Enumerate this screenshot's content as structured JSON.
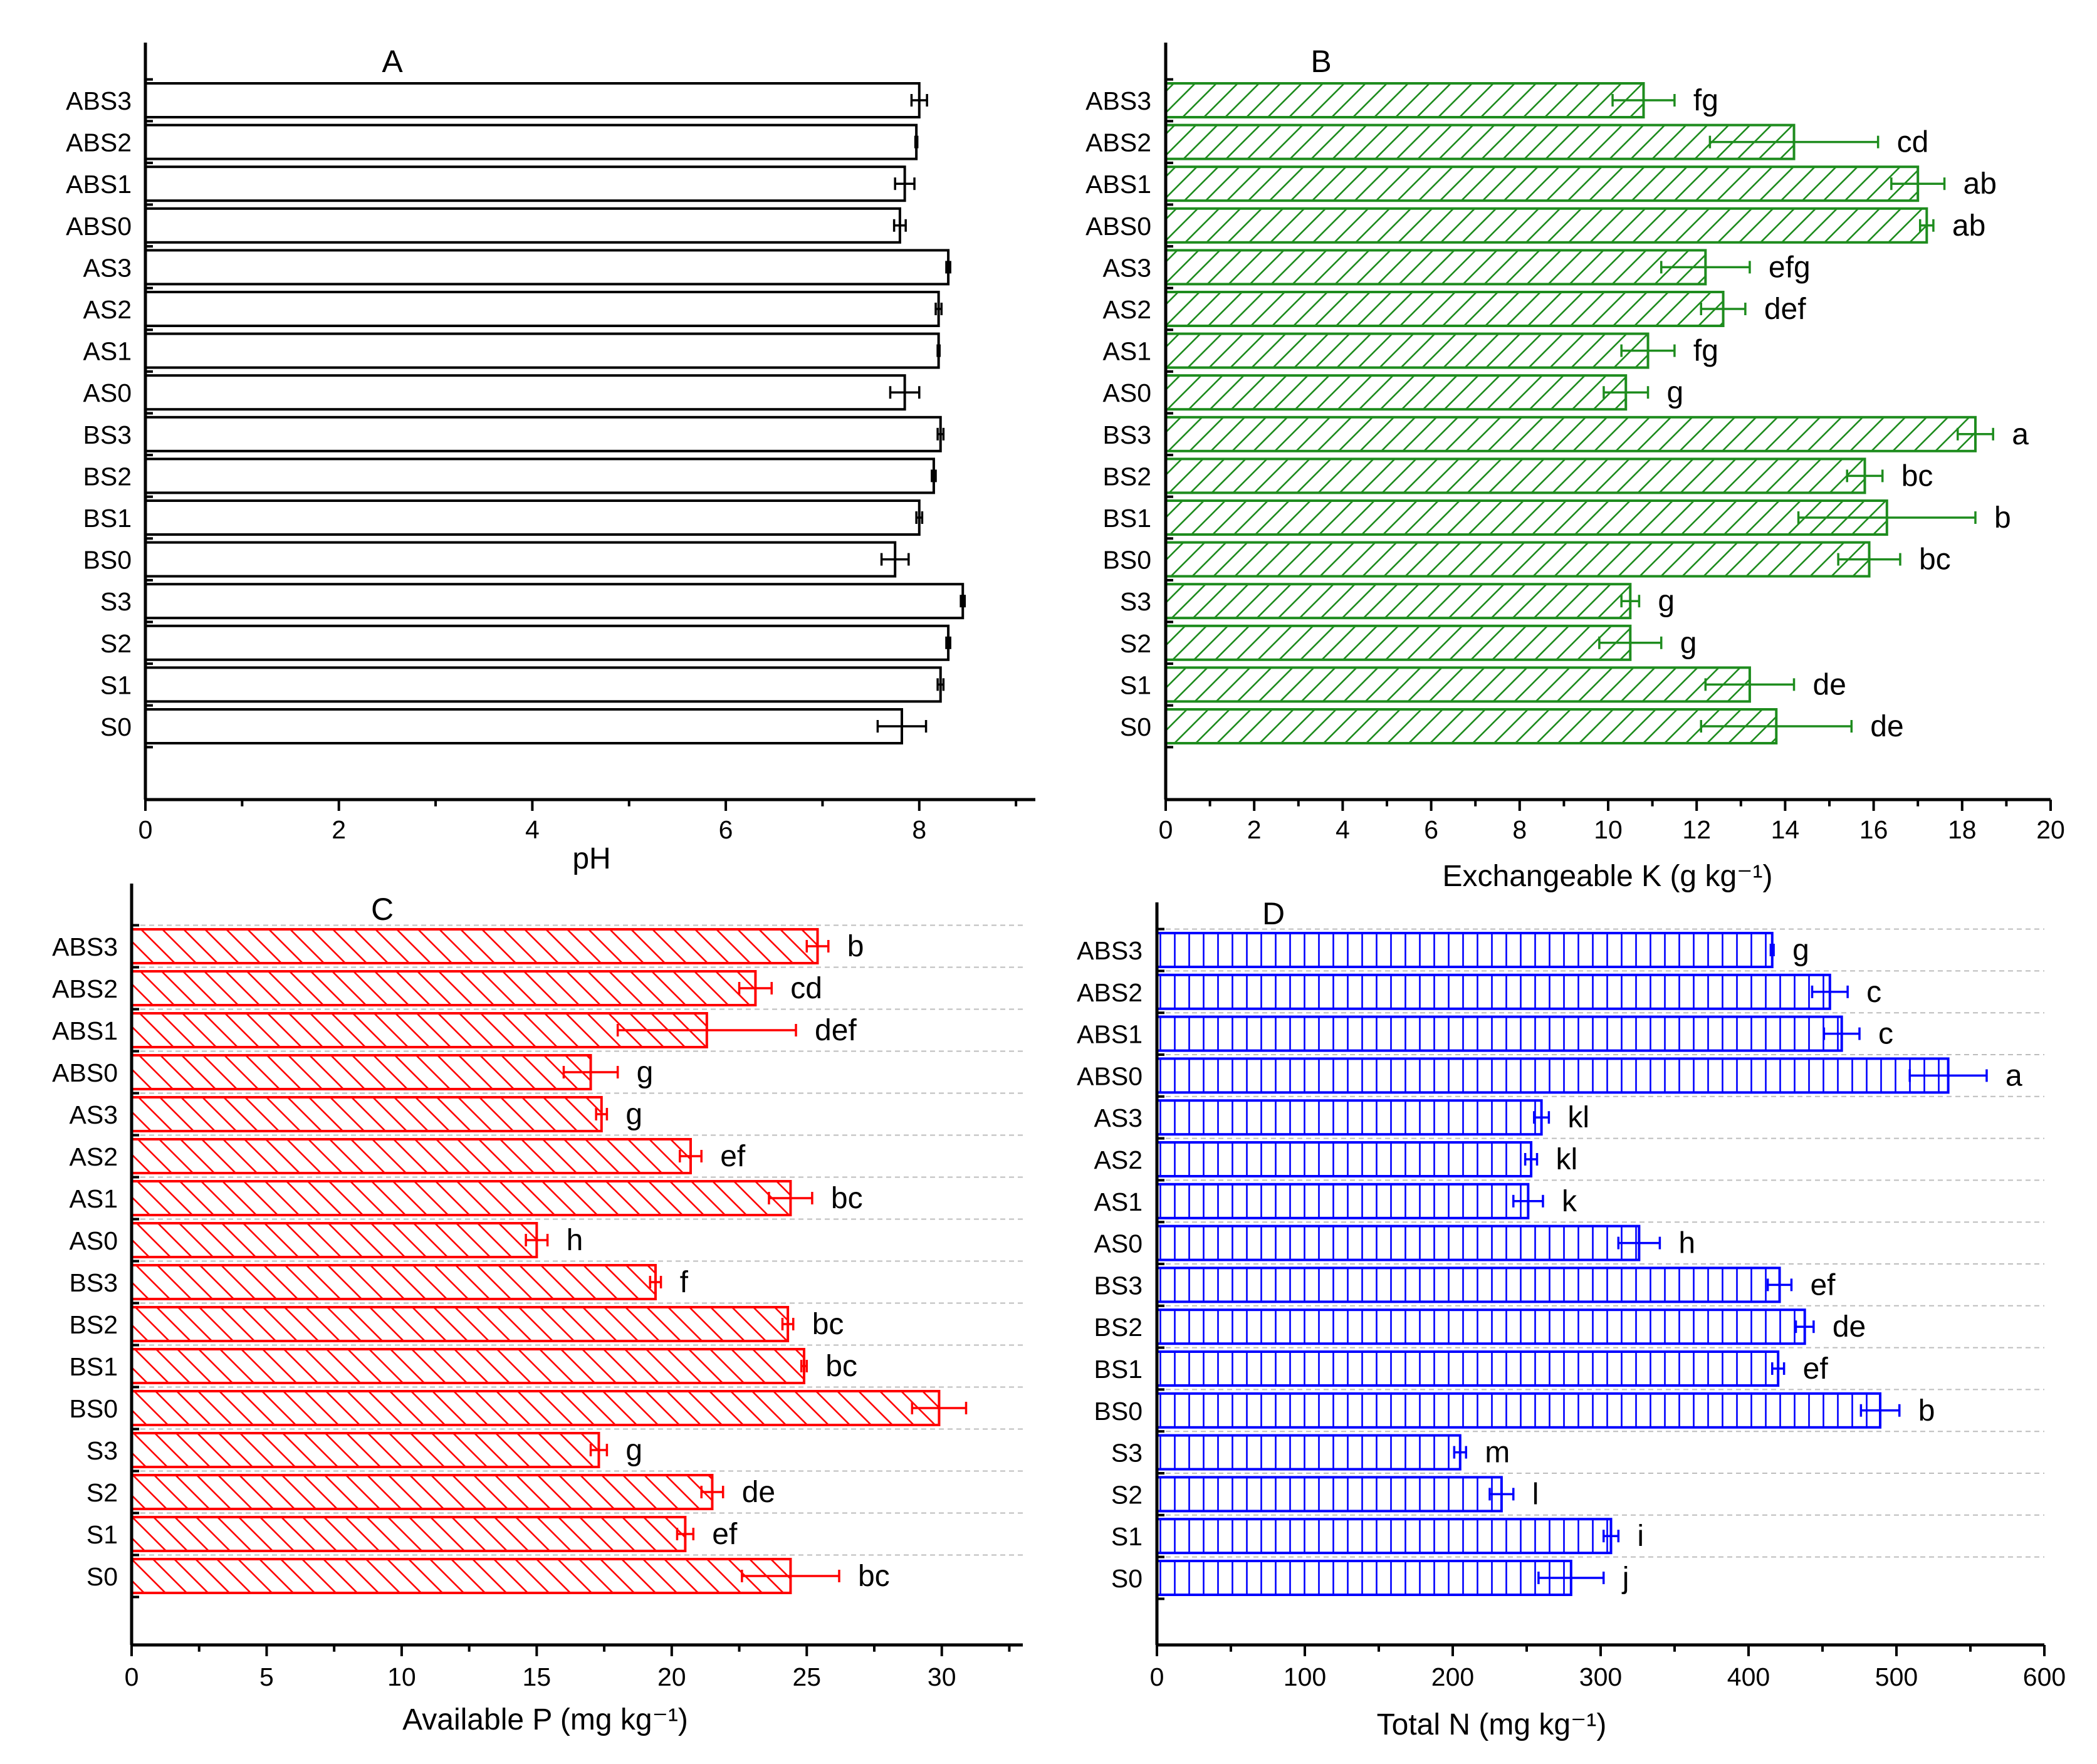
{
  "chart_data": [
    {
      "panel": "A",
      "type": "bar",
      "orientation": "horizontal",
      "categories": [
        "ABS3",
        "ABS2",
        "ABS1",
        "ABS0",
        "AS3",
        "AS2",
        "AS1",
        "AS0",
        "BS3",
        "BS2",
        "BS1",
        "BS0",
        "S3",
        "S2",
        "S1",
        "S0"
      ],
      "values": [
        8.0,
        7.97,
        7.85,
        7.8,
        8.3,
        8.2,
        8.2,
        7.85,
        8.22,
        8.15,
        8.0,
        7.75,
        8.45,
        8.3,
        8.22,
        7.82
      ],
      "errors": [
        0.08,
        0.01,
        0.1,
        0.06,
        0.02,
        0.03,
        0.01,
        0.15,
        0.03,
        0.02,
        0.03,
        0.14,
        0.02,
        0.02,
        0.03,
        0.25
      ],
      "sig_labels": [],
      "xlabel": "pH",
      "xlim": [
        0,
        9.2
      ],
      "xticks": [
        0,
        2,
        4,
        6,
        8
      ],
      "color": "#000000",
      "pattern": "none",
      "grid": false
    },
    {
      "panel": "B",
      "type": "bar",
      "orientation": "horizontal",
      "categories": [
        "ABS3",
        "ABS2",
        "ABS1",
        "ABS0",
        "AS3",
        "AS2",
        "AS1",
        "AS0",
        "BS3",
        "BS2",
        "BS1",
        "BS0",
        "S3",
        "S2",
        "S1",
        "S0"
      ],
      "values": [
        10.8,
        14.2,
        17.0,
        17.2,
        12.2,
        12.6,
        10.9,
        10.4,
        18.3,
        15.8,
        16.3,
        15.9,
        10.5,
        10.5,
        13.2,
        13.8
      ],
      "errors": [
        0.7,
        1.9,
        0.6,
        0.15,
        1.0,
        0.5,
        0.6,
        0.5,
        0.4,
        0.4,
        2.0,
        0.7,
        0.2,
        0.7,
        1.0,
        1.7
      ],
      "sig_labels": [
        "fg",
        "cd",
        "ab",
        "ab",
        "efg",
        "def",
        "fg",
        "g",
        "a",
        "bc",
        "b",
        "bc",
        "g",
        "g",
        "de",
        "de"
      ],
      "xlabel": "Exchangeable K (g kg⁻¹)",
      "xlim": [
        0,
        20
      ],
      "xticks": [
        0,
        2,
        4,
        6,
        8,
        10,
        12,
        14,
        16,
        18,
        20
      ],
      "color": "#1e8c1e",
      "pattern": "diag-up",
      "grid": false
    },
    {
      "panel": "C",
      "type": "bar",
      "orientation": "horizontal",
      "categories": [
        "ABS3",
        "ABS2",
        "ABS1",
        "ABS0",
        "AS3",
        "AS2",
        "AS1",
        "AS0",
        "BS3",
        "BS2",
        "BS1",
        "BS0",
        "S3",
        "S2",
        "S1",
        "S0"
      ],
      "values": [
        25.4,
        23.1,
        21.3,
        17.0,
        17.4,
        20.7,
        24.4,
        15.0,
        19.4,
        24.3,
        24.9,
        29.9,
        17.3,
        21.5,
        20.5,
        24.4
      ],
      "errors": [
        0.4,
        0.6,
        3.3,
        1.0,
        0.2,
        0.4,
        0.8,
        0.4,
        0.2,
        0.2,
        0.1,
        1.0,
        0.3,
        0.4,
        0.3,
        1.8
      ],
      "sig_labels": [
        "b",
        "cd",
        "def",
        "g",
        "g",
        "ef",
        "bc",
        "h",
        "f",
        "bc",
        "bc",
        "",
        "g",
        "de",
        "ef",
        "bc"
      ],
      "xlabel": "Available P (mg kg⁻¹)",
      "xlim": [
        0,
        33
      ],
      "xticks": [
        0,
        5,
        10,
        15,
        20,
        25,
        30
      ],
      "color": "#ff0000",
      "pattern": "diag-down",
      "grid": true
    },
    {
      "panel": "D",
      "type": "bar",
      "orientation": "horizontal",
      "categories": [
        "ABS3",
        "ABS2",
        "ABS1",
        "ABS0",
        "AS3",
        "AS2",
        "AS1",
        "AS0",
        "BS3",
        "BS2",
        "BS1",
        "BS0",
        "S3",
        "S2",
        "S1",
        "S0"
      ],
      "values": [
        416,
        455,
        463,
        535,
        260,
        253,
        251,
        326,
        421,
        438,
        420,
        489,
        205,
        233,
        307,
        280
      ],
      "errors": [
        1,
        12,
        12,
        26,
        5,
        4,
        10,
        14,
        8,
        6,
        4,
        13,
        4,
        8,
        5,
        22
      ],
      "sig_labels": [
        "g",
        "c",
        "c",
        "a",
        "kl",
        "kl",
        "k",
        "h",
        "ef",
        "de",
        "ef",
        "b",
        "m",
        "l",
        "i",
        "j"
      ],
      "xlabel": "Total N (mg kg⁻¹)",
      "xlim": [
        0,
        600
      ],
      "xticks": [
        0,
        100,
        200,
        300,
        400,
        500,
        600
      ],
      "color": "#0000ff",
      "pattern": "vertical",
      "grid": true
    }
  ]
}
